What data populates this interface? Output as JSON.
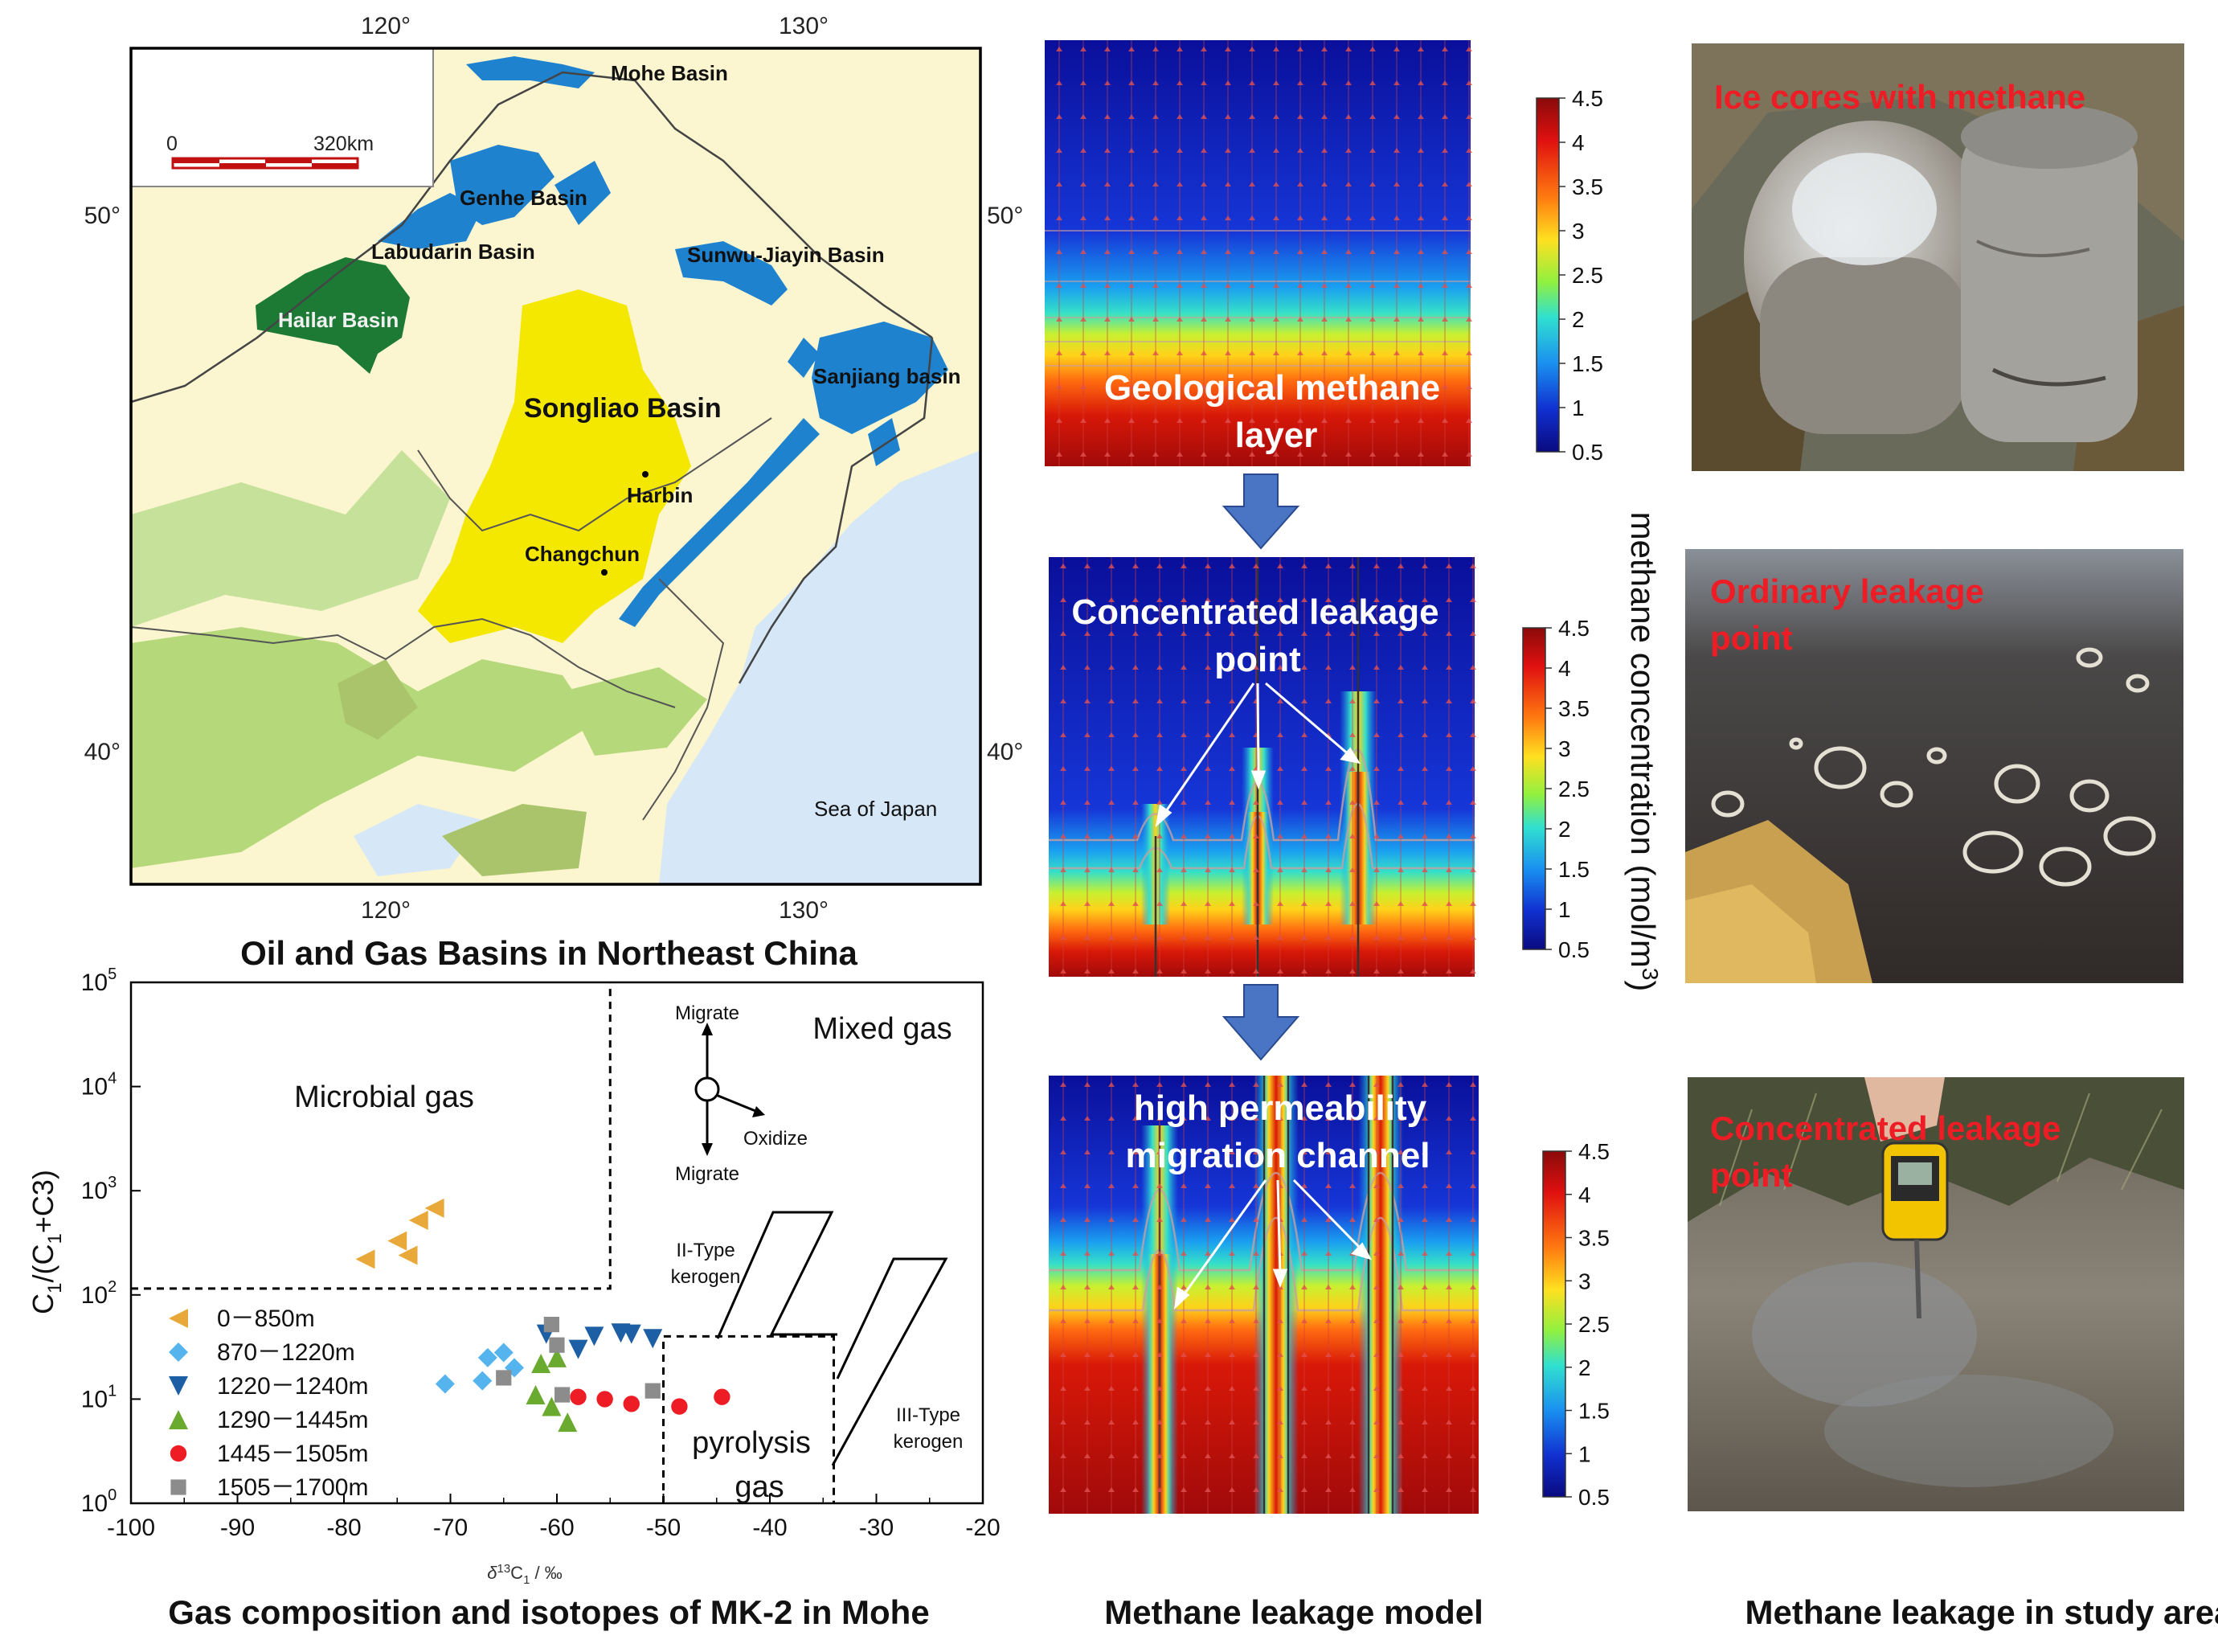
{
  "map": {
    "caption": "Oil and Gas Basins in Northeast China",
    "lon_top": [
      "120°",
      "130°"
    ],
    "lon_bottom": [
      "120°",
      "130°"
    ],
    "lat_left": [
      "50°",
      "40°"
    ],
    "lat_right": [
      "50°",
      "40°"
    ],
    "scale_zero": "0",
    "scale_end": "320km",
    "basins": {
      "mohe": "Mohe Basin",
      "genhe": "Genhe Basin",
      "labudarin": "Labudarin Basin",
      "sunwu": "Sunwu-Jiayin Basin",
      "hailar": "Hailar Basin",
      "songliao": "Songliao Basin",
      "sanjiang": "Sanjiang basin",
      "harbin": "Harbin",
      "changchun": "Changchun",
      "sea": "Sea of Japan"
    },
    "colors": {
      "land": "#fbf5d0",
      "basin_blue": "#1e82cf",
      "songliao": "#f5e800",
      "hailar": "#1c7a35",
      "sea": "#d6e8f7",
      "green_zone": "#b5d97a"
    }
  },
  "chart": {
    "caption": "Gas composition and isotopes of MK-2 in Mohe",
    "ylabel_main": "C",
    "ylabel_sub1": "1",
    "ylabel_mid": "/(C",
    "ylabel_sub2": "1",
    "ylabel_end": "+C3)",
    "xlabel_delta": "δ",
    "xlabel_sup": "13",
    "xlabel_c": "C",
    "xlabel_sub": "1",
    "xlabel_unit": " / ‰",
    "y_base": "10",
    "y_exps": [
      "0",
      "1",
      "2",
      "3",
      "4",
      "5"
    ],
    "x_ticks": [
      "-100",
      "-90",
      "-80",
      "-70",
      "-60",
      "-50",
      "-40",
      "-30",
      "-20"
    ],
    "regions": {
      "microbial": "Microbial gas",
      "mixed": "Mixed gas",
      "pyrolysis_1": "pyrolysis",
      "pyrolysis_2": "gas",
      "ii_type_1": "II-Type",
      "ii_type_2": "kerogen",
      "iii_type_1": "III-Type",
      "iii_type_2": "kerogen",
      "migrate_up": "Migrate",
      "migrate_down": "Migrate",
      "oxidize": "Oxidize"
    },
    "legend": [
      {
        "label": "0－850m",
        "marker": "triangle-left",
        "color": "#e8a83a"
      },
      {
        "label": "870－1220m",
        "marker": "diamond",
        "color": "#55b4ee"
      },
      {
        "label": "1220－1240m",
        "marker": "triangle-down",
        "color": "#1d5fa5"
      },
      {
        "label": "1290－1445m",
        "marker": "triangle-up",
        "color": "#6aaa2e"
      },
      {
        "label": "1445－1505m",
        "marker": "circle",
        "color": "#ee1c24"
      },
      {
        "label": "1505－1700m",
        "marker": "square",
        "color": "#8c8c8c"
      }
    ]
  },
  "chart_data": {
    "type": "scatter",
    "title": "Gas composition and isotopes of MK-2 in Mohe",
    "xlabel": "δ13C1 / ‰",
    "ylabel": "C1/(C1+C3)",
    "xlim": [
      -100,
      -20
    ],
    "ylim": [
      1,
      100000
    ],
    "y_scale": "log",
    "series": [
      {
        "name": "0－850m",
        "points": [
          [
            -78,
            220
          ],
          [
            -75,
            330
          ],
          [
            -74,
            240
          ],
          [
            -73,
            520
          ],
          [
            -71.5,
            680
          ]
        ]
      },
      {
        "name": "870－1220m",
        "points": [
          [
            -70.5,
            14
          ],
          [
            -67,
            15
          ],
          [
            -66.5,
            25
          ],
          [
            -65,
            28
          ],
          [
            -64,
            20
          ]
        ]
      },
      {
        "name": "1220－1240m",
        "points": [
          [
            -61,
            42
          ],
          [
            -58,
            30
          ],
          [
            -56.5,
            40
          ],
          [
            -54,
            43
          ],
          [
            -53,
            42
          ],
          [
            -51,
            38
          ]
        ]
      },
      {
        "name": "1290－1445m",
        "points": [
          [
            -62,
            11
          ],
          [
            -61.5,
            22
          ],
          [
            -60.5,
            8.5
          ],
          [
            -60,
            25
          ],
          [
            -59,
            6
          ]
        ]
      },
      {
        "name": "1445－1505m",
        "points": [
          [
            -58,
            10.5
          ],
          [
            -55.5,
            10
          ],
          [
            -53,
            9
          ],
          [
            -48.5,
            8.5
          ],
          [
            -44.5,
            10.5
          ]
        ]
      },
      {
        "name": "1505－1700m",
        "points": [
          [
            -65,
            16
          ],
          [
            -60.5,
            52
          ],
          [
            -60,
            33
          ],
          [
            -59.5,
            11
          ],
          [
            -51,
            12
          ]
        ]
      }
    ]
  },
  "model": {
    "caption": "Methane leakage model",
    "label1_a": "Geological methane",
    "label1_b": "layer",
    "label2_a": "Concentrated leakage",
    "label2_b": "point",
    "label3_a": "high permeability",
    "label3_b": "migration channel",
    "colorbar_title": "methane concentration (mol/m",
    "colorbar_sup": "3",
    "colorbar_end": ")",
    "colorbar_ticks": [
      "4.5",
      "4",
      "3.5",
      "3",
      "2.5",
      "2",
      "1.5",
      "1",
      "0.5"
    ]
  },
  "photos": {
    "caption": "Methane leakage in study area",
    "label1": "Ice cores with methane",
    "label2_a": "Ordinary leakage",
    "label2_b": "point",
    "label3_a": "Concentrated leakage",
    "label3_b": "point"
  }
}
